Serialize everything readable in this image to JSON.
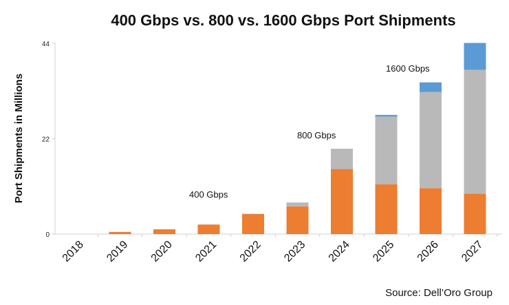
{
  "chart_data": {
    "type": "bar",
    "stacked": true,
    "title": "400 Gbps vs. 800 vs. 1600 Gbps Port Shipments",
    "ylabel": "Port Shipments in Millions",
    "xlabel": "",
    "ylim": [
      0,
      44
    ],
    "yticks": [
      0,
      22,
      44
    ],
    "categories": [
      "2018",
      "2019",
      "2020",
      "2021",
      "2022",
      "2023",
      "2024",
      "2025",
      "2026",
      "2027"
    ],
    "series": [
      {
        "name": "400 Gbps",
        "color": "#ED7D31",
        "values": [
          0,
          0.5,
          1.1,
          2.2,
          4.6,
          6.4,
          15.0,
          11.5,
          10.6,
          9.3
        ]
      },
      {
        "name": "800 Gbps",
        "color": "#B9B9B9",
        "values": [
          0,
          0,
          0,
          0,
          0.1,
          0.9,
          4.7,
          15.6,
          22.2,
          28.6
        ]
      },
      {
        "name": "1600 Gbps",
        "color": "#5B9BD5",
        "values": [
          0,
          0,
          0,
          0,
          0,
          0,
          0,
          0.4,
          2.2,
          6.2
        ]
      }
    ],
    "annotations": [
      "400 Gbps",
      "800 Gbps",
      "1600 Gbps"
    ],
    "grid": false,
    "source": "Source: Dell’Oro Group"
  }
}
